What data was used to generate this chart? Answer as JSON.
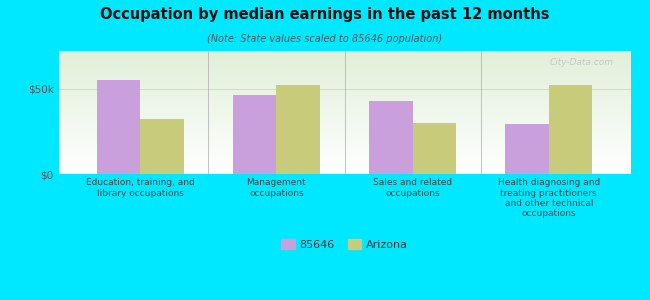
{
  "title": "Occupation by median earnings in the past 12 months",
  "subtitle": "(Note: State values scaled to 85646 population)",
  "categories": [
    "Education, training, and\nlibrary occupations",
    "Management\noccupations",
    "Sales and related\noccupations",
    "Health diagnosing and\ntreating practitioners\nand other technical\noccupations"
  ],
  "values_85646": [
    55000,
    46000,
    43000,
    29000
  ],
  "values_arizona": [
    32000,
    52000,
    30000,
    52000
  ],
  "color_85646": "#c9a0dc",
  "color_arizona": "#c8cc7a",
  "ylabel_ticks": [
    0,
    50000
  ],
  "ylabel_labels": [
    "$0",
    "$50k"
  ],
  "ylim": [
    0,
    72000
  ],
  "bg_outer": "#00e8ff",
  "legend_label_85646": "85646",
  "legend_label_arizona": "Arizona",
  "watermark": "City-Data.com",
  "bar_width": 0.32
}
